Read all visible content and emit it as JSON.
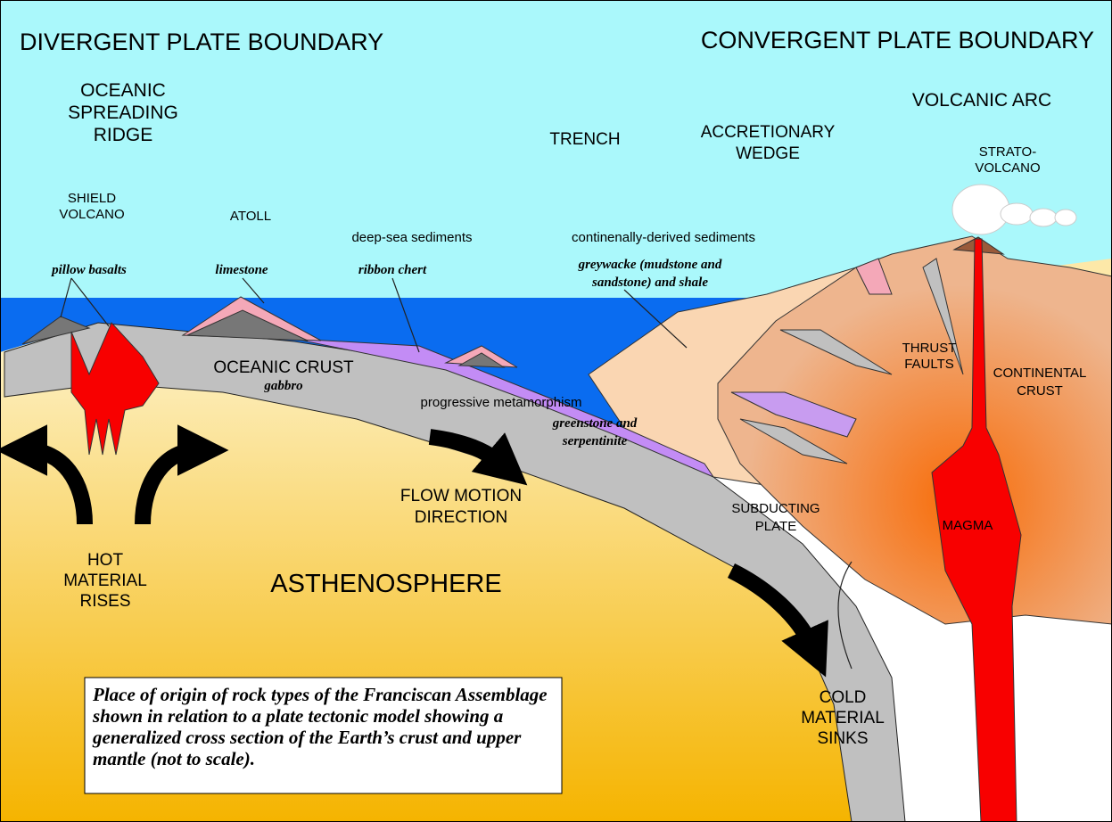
{
  "titles": {
    "left": "DIVERGENT PLATE BOUNDARY",
    "right": "CONVERGENT PLATE BOUNDARY"
  },
  "labels": {
    "ridge": [
      "OCEANIC",
      "SPREADING",
      "RIDGE"
    ],
    "trench": [
      "TRENCH"
    ],
    "wedge": [
      "ACCRETIONARY",
      "WEDGE"
    ],
    "arc": [
      "VOLCANIC ARC"
    ],
    "strato": [
      "STRATO-",
      "VOLCANO"
    ],
    "shield": [
      "SHIELD",
      "VOLCANO"
    ],
    "atoll": [
      "ATOLL"
    ],
    "deepsea": [
      "deep-sea sediments"
    ],
    "contsed": [
      "continenally-derived sediments"
    ],
    "oceanic_crust": [
      "OCEANIC CRUST"
    ],
    "metamorphism": [
      "progressive metamorphism"
    ],
    "thrust": [
      "THRUST",
      "FAULTS"
    ],
    "continental": [
      "CONTINENTAL",
      "CRUST"
    ],
    "flow": [
      "FLOW MOTION",
      "DIRECTION"
    ],
    "subducting": [
      "SUBDUCTING",
      "PLATE"
    ],
    "magma": [
      "MAGMA"
    ],
    "hot": [
      "HOT",
      "MATERIAL",
      "RISES"
    ],
    "astheno": [
      "ASTHENOSPHERE"
    ],
    "cold": [
      "COLD",
      "MATERIAL",
      "SINKS"
    ]
  },
  "rocks": {
    "pillow": [
      "pillow basalts"
    ],
    "limestone": [
      "limestone"
    ],
    "chert": [
      "ribbon chert"
    ],
    "greywacke": [
      "greywacke (mudstone and",
      "sandstone) and shale"
    ],
    "gabbro": [
      "gabbro"
    ],
    "greenstone": [
      "greenstone and",
      "serpentinite"
    ]
  },
  "caption": [
    "Place of origin of rock types of the Franciscan Assemblage",
    "shown in relation to a plate tectonic model showing a",
    "generalized cross section of the Earth’s crust and upper",
    "mantle (not to scale)."
  ]
}
